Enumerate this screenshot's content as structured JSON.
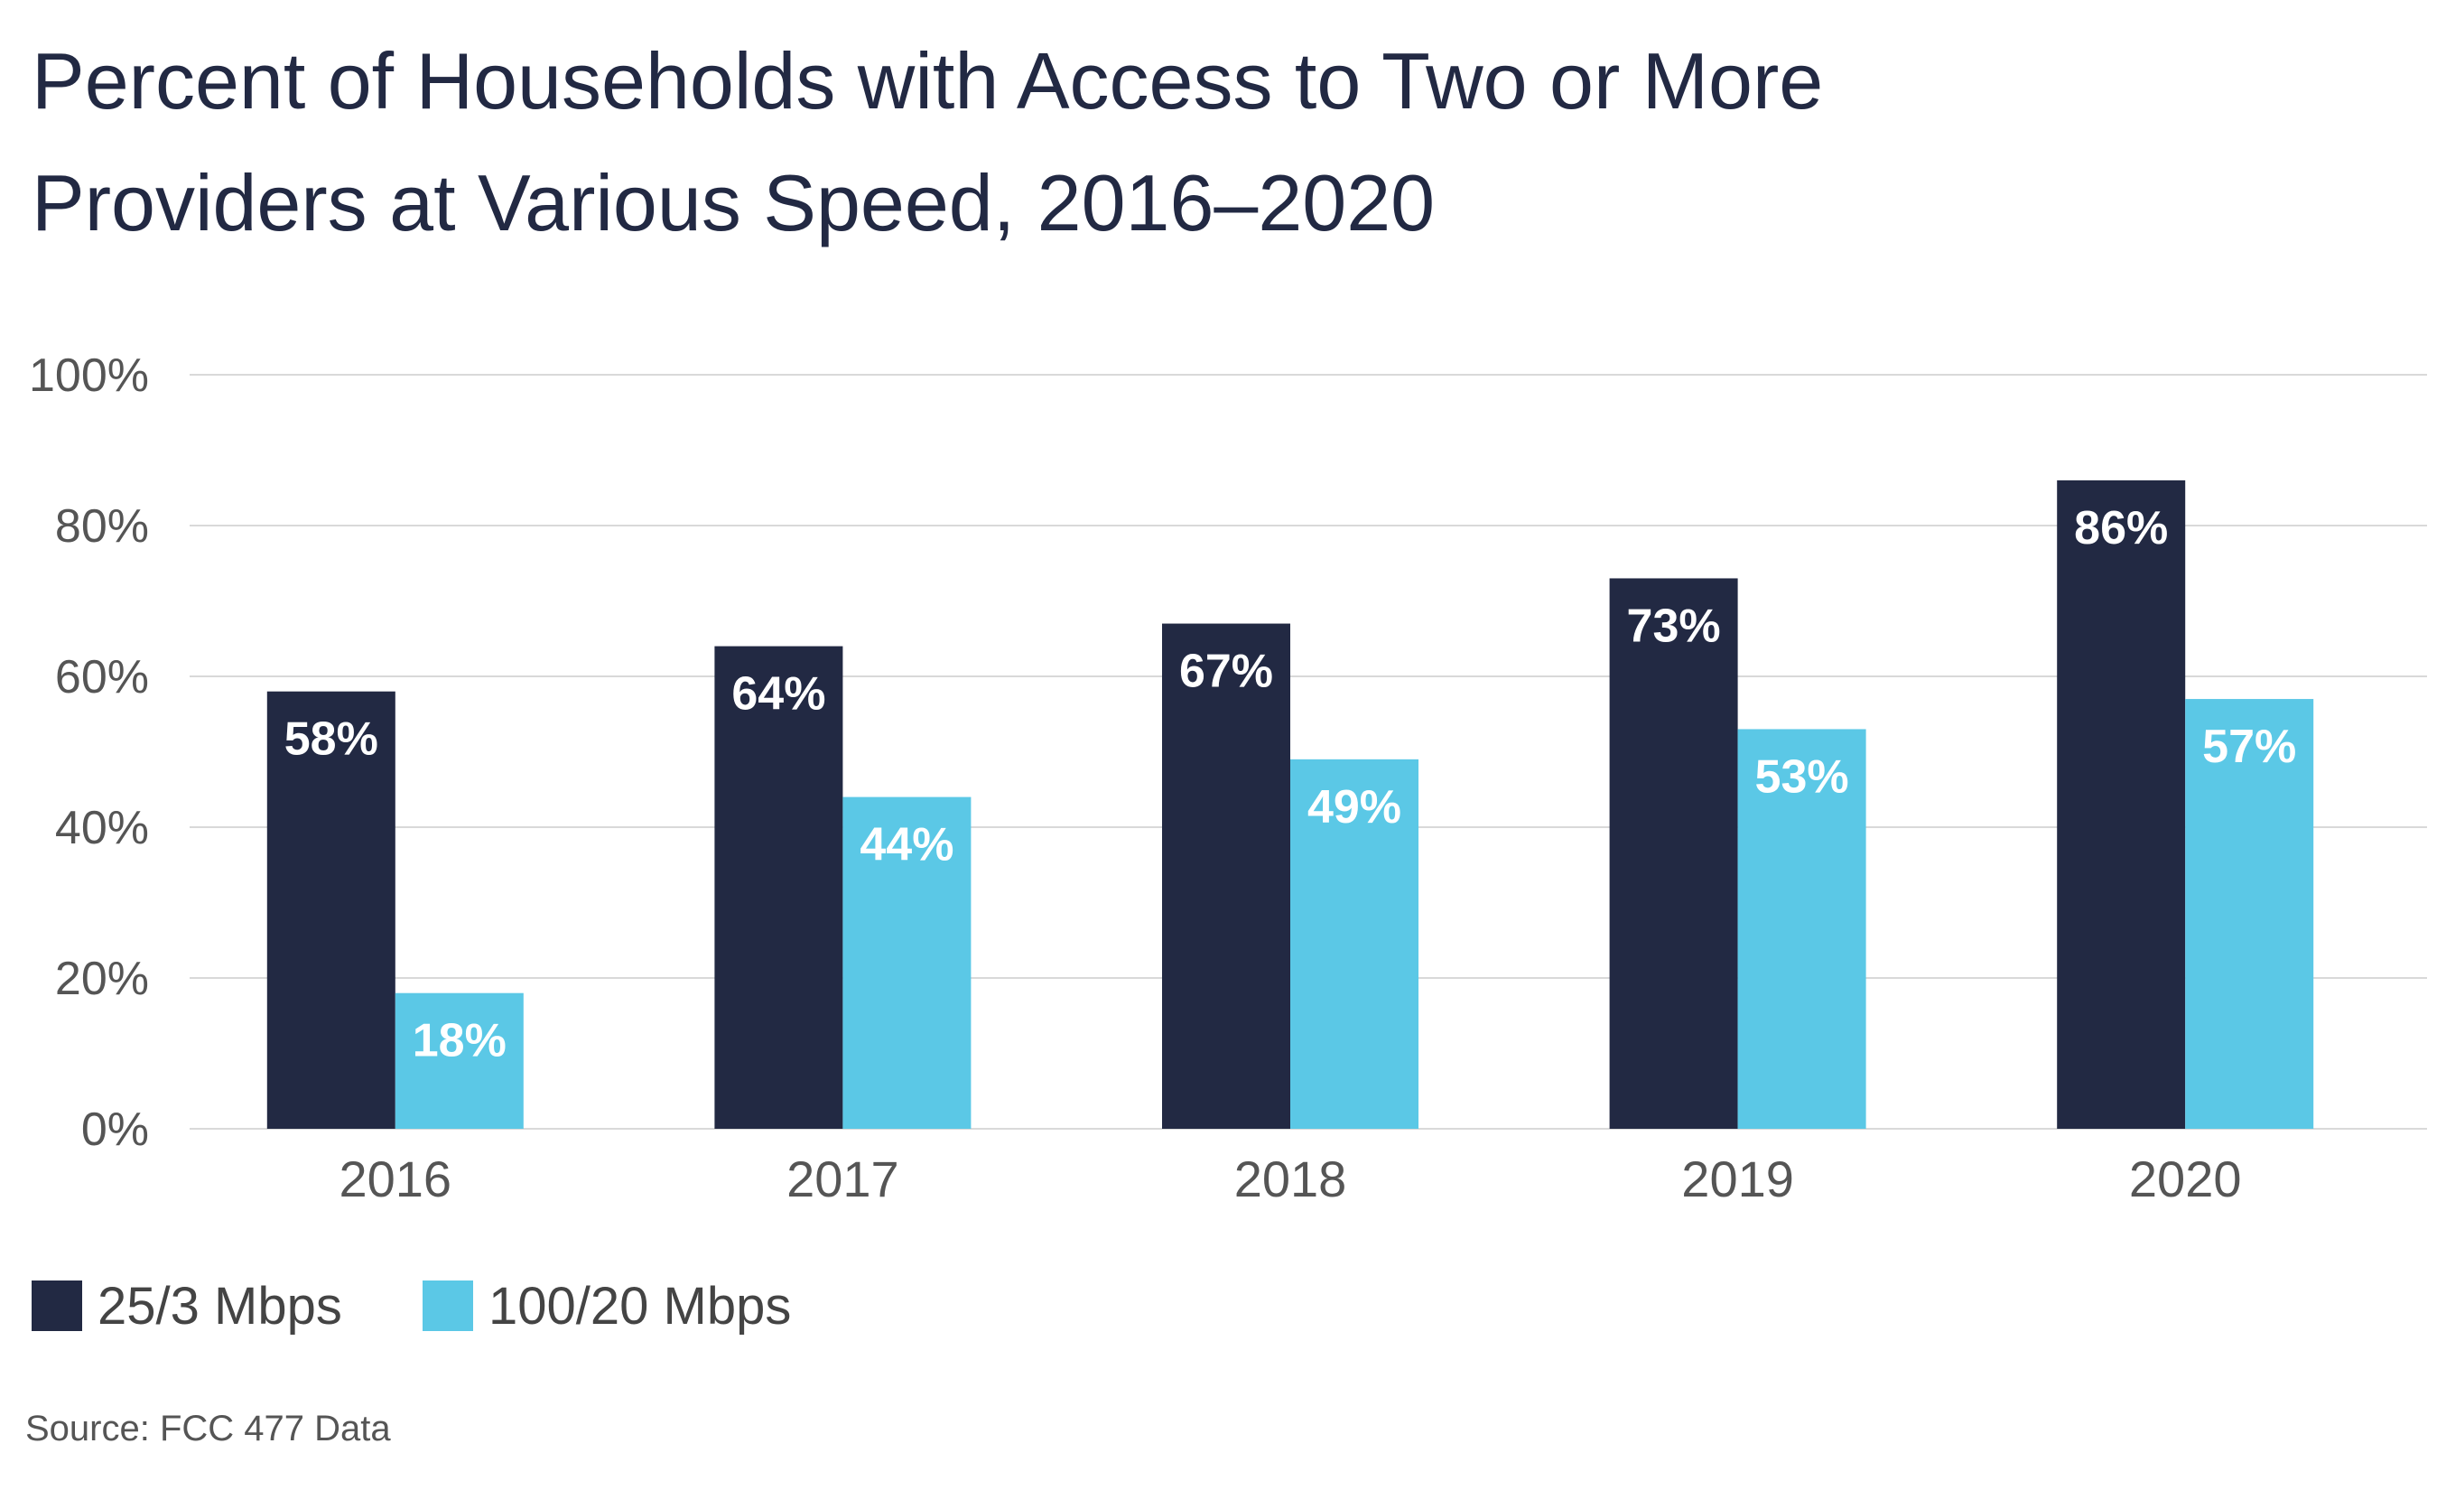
{
  "chart_data": {
    "type": "bar",
    "title_lines": [
      "Percent of Households with Access to Two or More",
      "Providers at Various Speed, 2016–2020"
    ],
    "categories": [
      "2016",
      "2017",
      "2018",
      "2019",
      "2020"
    ],
    "series": [
      {
        "name": "25/3 Mbps",
        "values": [
          58,
          64,
          67,
          73,
          86
        ],
        "labels": [
          "58%",
          "64%",
          "67%",
          "73%",
          "86%"
        ],
        "color": "#222943"
      },
      {
        "name": "100/20 Mbps",
        "values": [
          18,
          44,
          49,
          53,
          57
        ],
        "labels": [
          "18%",
          "44%",
          "49%",
          "53%",
          "57%"
        ],
        "color": "#5bc8e6"
      }
    ],
    "yticks": [
      0,
      20,
      40,
      60,
      80,
      100
    ],
    "ytick_labels": [
      "0%",
      "20%",
      "40%",
      "60%",
      "80%",
      "100%"
    ],
    "ylim": [
      0,
      100
    ],
    "grid": true,
    "legend_position": "bottom-left",
    "source": "Source: FCC 477 Data"
  }
}
